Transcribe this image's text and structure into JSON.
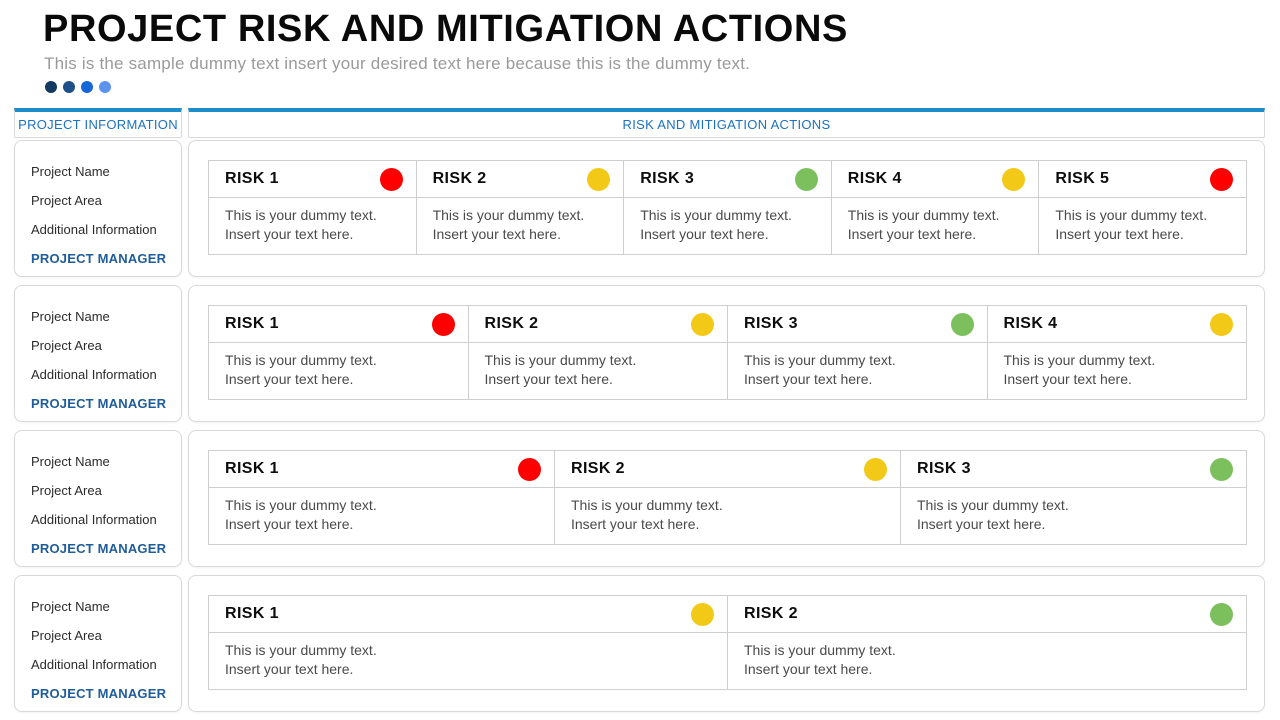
{
  "header": {
    "title": "PROJECT RISK AND MITIGATION ACTIONS",
    "subtitle": "This is the sample dummy text insert your desired text here because this is the dummy text.",
    "accent_dots": [
      "#143a61",
      "#1d5089",
      "#1766d8",
      "#5b93ee"
    ]
  },
  "panels": {
    "left_header": "PROJECT INFORMATION",
    "right_header": "RISK AND MITIGATION ACTIONS"
  },
  "sidebar": {
    "card_count": 4,
    "labels": [
      "Project Name",
      "Project Area",
      "Additional Information"
    ],
    "manager": "PROJECT MANAGER"
  },
  "risk_body": {
    "line1": "This is your dummy text.",
    "line2": "Insert your text here."
  },
  "status_colors": {
    "red": "#fe0000",
    "yellow": "#f3c918",
    "green": "#7cc05e"
  },
  "risk_rows": [
    {
      "cells": [
        {
          "label": "RISK 1",
          "status": "red"
        },
        {
          "label": "RISK 2",
          "status": "yellow"
        },
        {
          "label": "RISK 3",
          "status": "green"
        },
        {
          "label": "RISK 4",
          "status": "yellow"
        },
        {
          "label": "RISK 5",
          "status": "red"
        }
      ]
    },
    {
      "cells": [
        {
          "label": "RISK 1",
          "status": "red"
        },
        {
          "label": "RISK 2",
          "status": "yellow"
        },
        {
          "label": "RISK 3",
          "status": "green"
        },
        {
          "label": "RISK 4",
          "status": "yellow"
        }
      ]
    },
    {
      "cells": [
        {
          "label": "RISK 1",
          "status": "red"
        },
        {
          "label": "RISK 2",
          "status": "yellow"
        },
        {
          "label": "RISK 3",
          "status": "green"
        }
      ]
    },
    {
      "cells": [
        {
          "label": "RISK 1",
          "status": "yellow"
        },
        {
          "label": "RISK 2",
          "status": "green"
        }
      ]
    }
  ],
  "colors": {
    "accent_border": "#1b8ecb",
    "panel_header_text": "#1b72c2",
    "manager_text": "#1f5c9b",
    "card_border": "#d9d9d9",
    "table_border": "#cfcfcf"
  }
}
